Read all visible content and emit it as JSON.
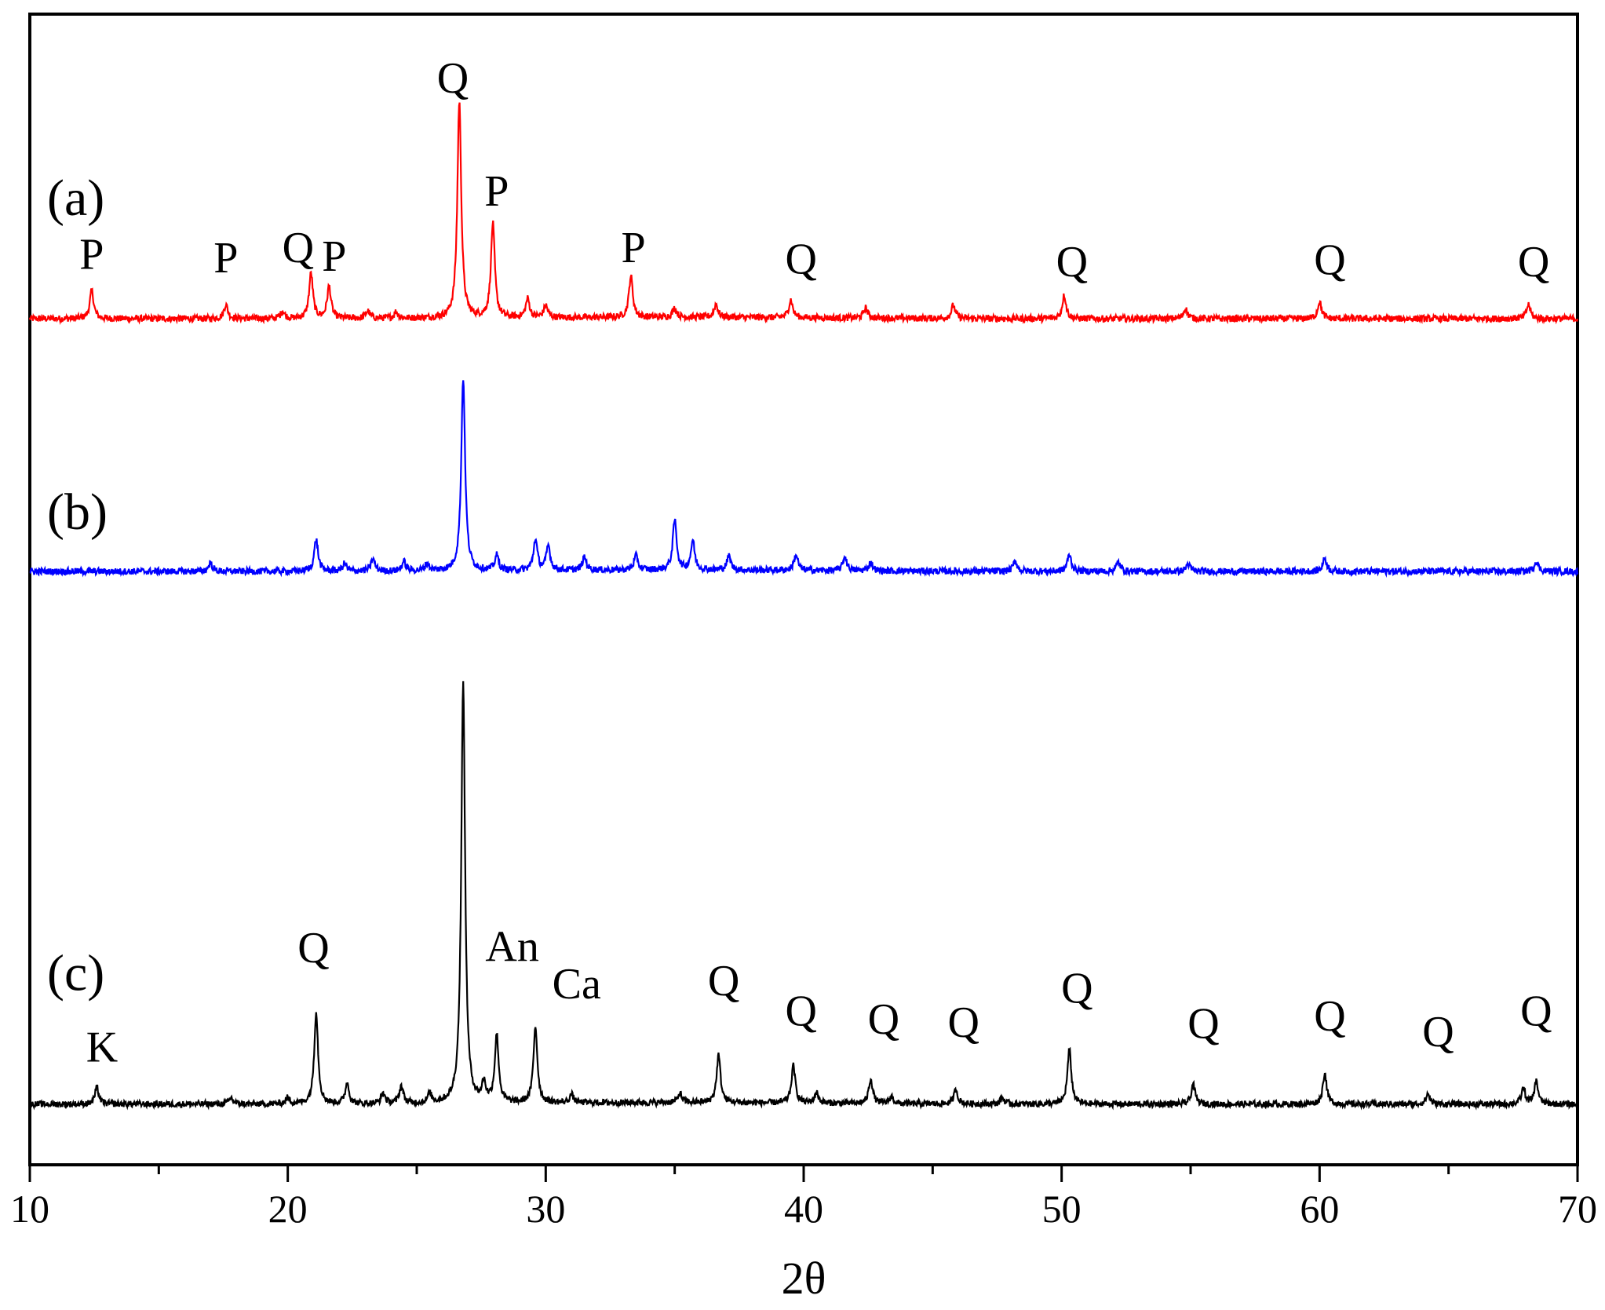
{
  "chart_data": {
    "type": "line",
    "xlabel": "2θ",
    "ylabel": "",
    "xlim": [
      10,
      70
    ],
    "x_ticks": [
      10,
      20,
      30,
      40,
      50,
      60,
      70
    ],
    "x_minor_step": 5,
    "grid": false,
    "y_ticks_shown": false,
    "series": [
      {
        "label": "(a)",
        "color": "#ff0000",
        "baseline": 1.0,
        "noise": 0.35,
        "peaks": [
          {
            "x": 12.4,
            "h": 3.0
          },
          {
            "x": 17.6,
            "h": 1.5
          },
          {
            "x": 19.8,
            "h": 0.8
          },
          {
            "x": 20.9,
            "h": 4.8
          },
          {
            "x": 21.6,
            "h": 3.4
          },
          {
            "x": 23.1,
            "h": 0.8
          },
          {
            "x": 24.2,
            "h": 0.7
          },
          {
            "x": 26.65,
            "h": 23.0
          },
          {
            "x": 27.95,
            "h": 10.0
          },
          {
            "x": 29.3,
            "h": 2.0
          },
          {
            "x": 30.0,
            "h": 1.3
          },
          {
            "x": 33.3,
            "h": 4.4
          },
          {
            "x": 35.0,
            "h": 1.0
          },
          {
            "x": 36.6,
            "h": 1.4
          },
          {
            "x": 39.5,
            "h": 1.9
          },
          {
            "x": 42.4,
            "h": 1.1
          },
          {
            "x": 45.8,
            "h": 1.4
          },
          {
            "x": 50.1,
            "h": 2.5
          },
          {
            "x": 54.8,
            "h": 1.1
          },
          {
            "x": 60.0,
            "h": 1.8
          },
          {
            "x": 68.1,
            "h": 1.5
          }
        ],
        "annotations": [
          {
            "text": "P",
            "x": 12.4,
            "y": 6.3
          },
          {
            "text": "P",
            "x": 17.6,
            "y": 5.9
          },
          {
            "text": "Q",
            "x": 20.4,
            "y": 7.0
          },
          {
            "text": "P",
            "x": 21.8,
            "y": 6.1
          },
          {
            "text": "Q",
            "x": 26.4,
            "y": 25.0
          },
          {
            "text": "P",
            "x": 28.1,
            "y": 13.0
          },
          {
            "text": "P",
            "x": 33.4,
            "y": 7.0
          },
          {
            "text": "Q",
            "x": 39.9,
            "y": 5.8
          },
          {
            "text": "Q",
            "x": 50.4,
            "y": 5.5
          },
          {
            "text": "Q",
            "x": 60.4,
            "y": 5.7
          },
          {
            "text": "Q",
            "x": 68.3,
            "y": 5.5
          }
        ]
      },
      {
        "label": "(b)",
        "color": "#0000ff",
        "baseline": 1.0,
        "noise": 0.35,
        "peaks": [
          {
            "x": 17.0,
            "h": 0.9
          },
          {
            "x": 21.1,
            "h": 3.4
          },
          {
            "x": 22.2,
            "h": 0.8
          },
          {
            "x": 23.3,
            "h": 1.3
          },
          {
            "x": 24.5,
            "h": 1.0
          },
          {
            "x": 25.4,
            "h": 0.8
          },
          {
            "x": 26.8,
            "h": 20.5
          },
          {
            "x": 28.1,
            "h": 1.6
          },
          {
            "x": 29.6,
            "h": 3.3
          },
          {
            "x": 30.1,
            "h": 2.6
          },
          {
            "x": 31.5,
            "h": 1.4
          },
          {
            "x": 33.5,
            "h": 1.5
          },
          {
            "x": 35.0,
            "h": 5.3
          },
          {
            "x": 35.7,
            "h": 3.1
          },
          {
            "x": 37.1,
            "h": 1.5
          },
          {
            "x": 39.7,
            "h": 1.7
          },
          {
            "x": 41.6,
            "h": 1.5
          },
          {
            "x": 42.6,
            "h": 0.9
          },
          {
            "x": 48.2,
            "h": 1.1
          },
          {
            "x": 50.3,
            "h": 1.8
          },
          {
            "x": 52.2,
            "h": 1.0
          },
          {
            "x": 54.9,
            "h": 0.8
          },
          {
            "x": 60.2,
            "h": 1.4
          },
          {
            "x": 68.4,
            "h": 1.1
          }
        ],
        "annotations": []
      },
      {
        "label": "(c)",
        "color": "#000000",
        "baseline": 1.0,
        "noise": 0.3,
        "peaks": [
          {
            "x": 12.6,
            "h": 1.6
          },
          {
            "x": 17.8,
            "h": 0.6
          },
          {
            "x": 20.0,
            "h": 0.6
          },
          {
            "x": 21.1,
            "h": 8.9
          },
          {
            "x": 22.3,
            "h": 2.0
          },
          {
            "x": 23.7,
            "h": 1.0
          },
          {
            "x": 24.4,
            "h": 1.7
          },
          {
            "x": 25.5,
            "h": 0.9
          },
          {
            "x": 26.8,
            "h": 40.5
          },
          {
            "x": 27.6,
            "h": 1.8
          },
          {
            "x": 28.1,
            "h": 6.5
          },
          {
            "x": 29.6,
            "h": 7.4
          },
          {
            "x": 31.0,
            "h": 0.8
          },
          {
            "x": 35.2,
            "h": 0.9
          },
          {
            "x": 36.7,
            "h": 4.6
          },
          {
            "x": 39.6,
            "h": 3.6
          },
          {
            "x": 40.5,
            "h": 1.0
          },
          {
            "x": 42.6,
            "h": 2.4
          },
          {
            "x": 43.4,
            "h": 0.7
          },
          {
            "x": 45.9,
            "h": 1.4
          },
          {
            "x": 47.7,
            "h": 0.6
          },
          {
            "x": 50.3,
            "h": 5.3
          },
          {
            "x": 55.1,
            "h": 1.9
          },
          {
            "x": 60.2,
            "h": 3.0
          },
          {
            "x": 64.2,
            "h": 1.0
          },
          {
            "x": 67.9,
            "h": 1.5
          },
          {
            "x": 68.4,
            "h": 2.2
          }
        ],
        "annotations": [
          {
            "text": "K",
            "x": 12.8,
            "y": 5.1
          },
          {
            "text": "Q",
            "x": 21.0,
            "y": 14.7
          },
          {
            "text": "An",
            "x": 28.7,
            "y": 14.8
          },
          {
            "text": "Ca",
            "x": 31.2,
            "y": 11.2
          },
          {
            "text": "Q",
            "x": 36.9,
            "y": 11.5
          },
          {
            "text": "Q",
            "x": 39.9,
            "y": 8.6
          },
          {
            "text": "Q",
            "x": 43.1,
            "y": 7.8
          },
          {
            "text": "Q",
            "x": 46.2,
            "y": 7.5
          },
          {
            "text": "Q",
            "x": 50.6,
            "y": 10.8
          },
          {
            "text": "Q",
            "x": 55.5,
            "y": 7.4
          },
          {
            "text": "Q",
            "x": 60.4,
            "y": 8.1
          },
          {
            "text": "Q",
            "x": 64.6,
            "y": 6.6
          },
          {
            "text": "Q",
            "x": 68.4,
            "y": 8.6
          }
        ]
      }
    ]
  }
}
